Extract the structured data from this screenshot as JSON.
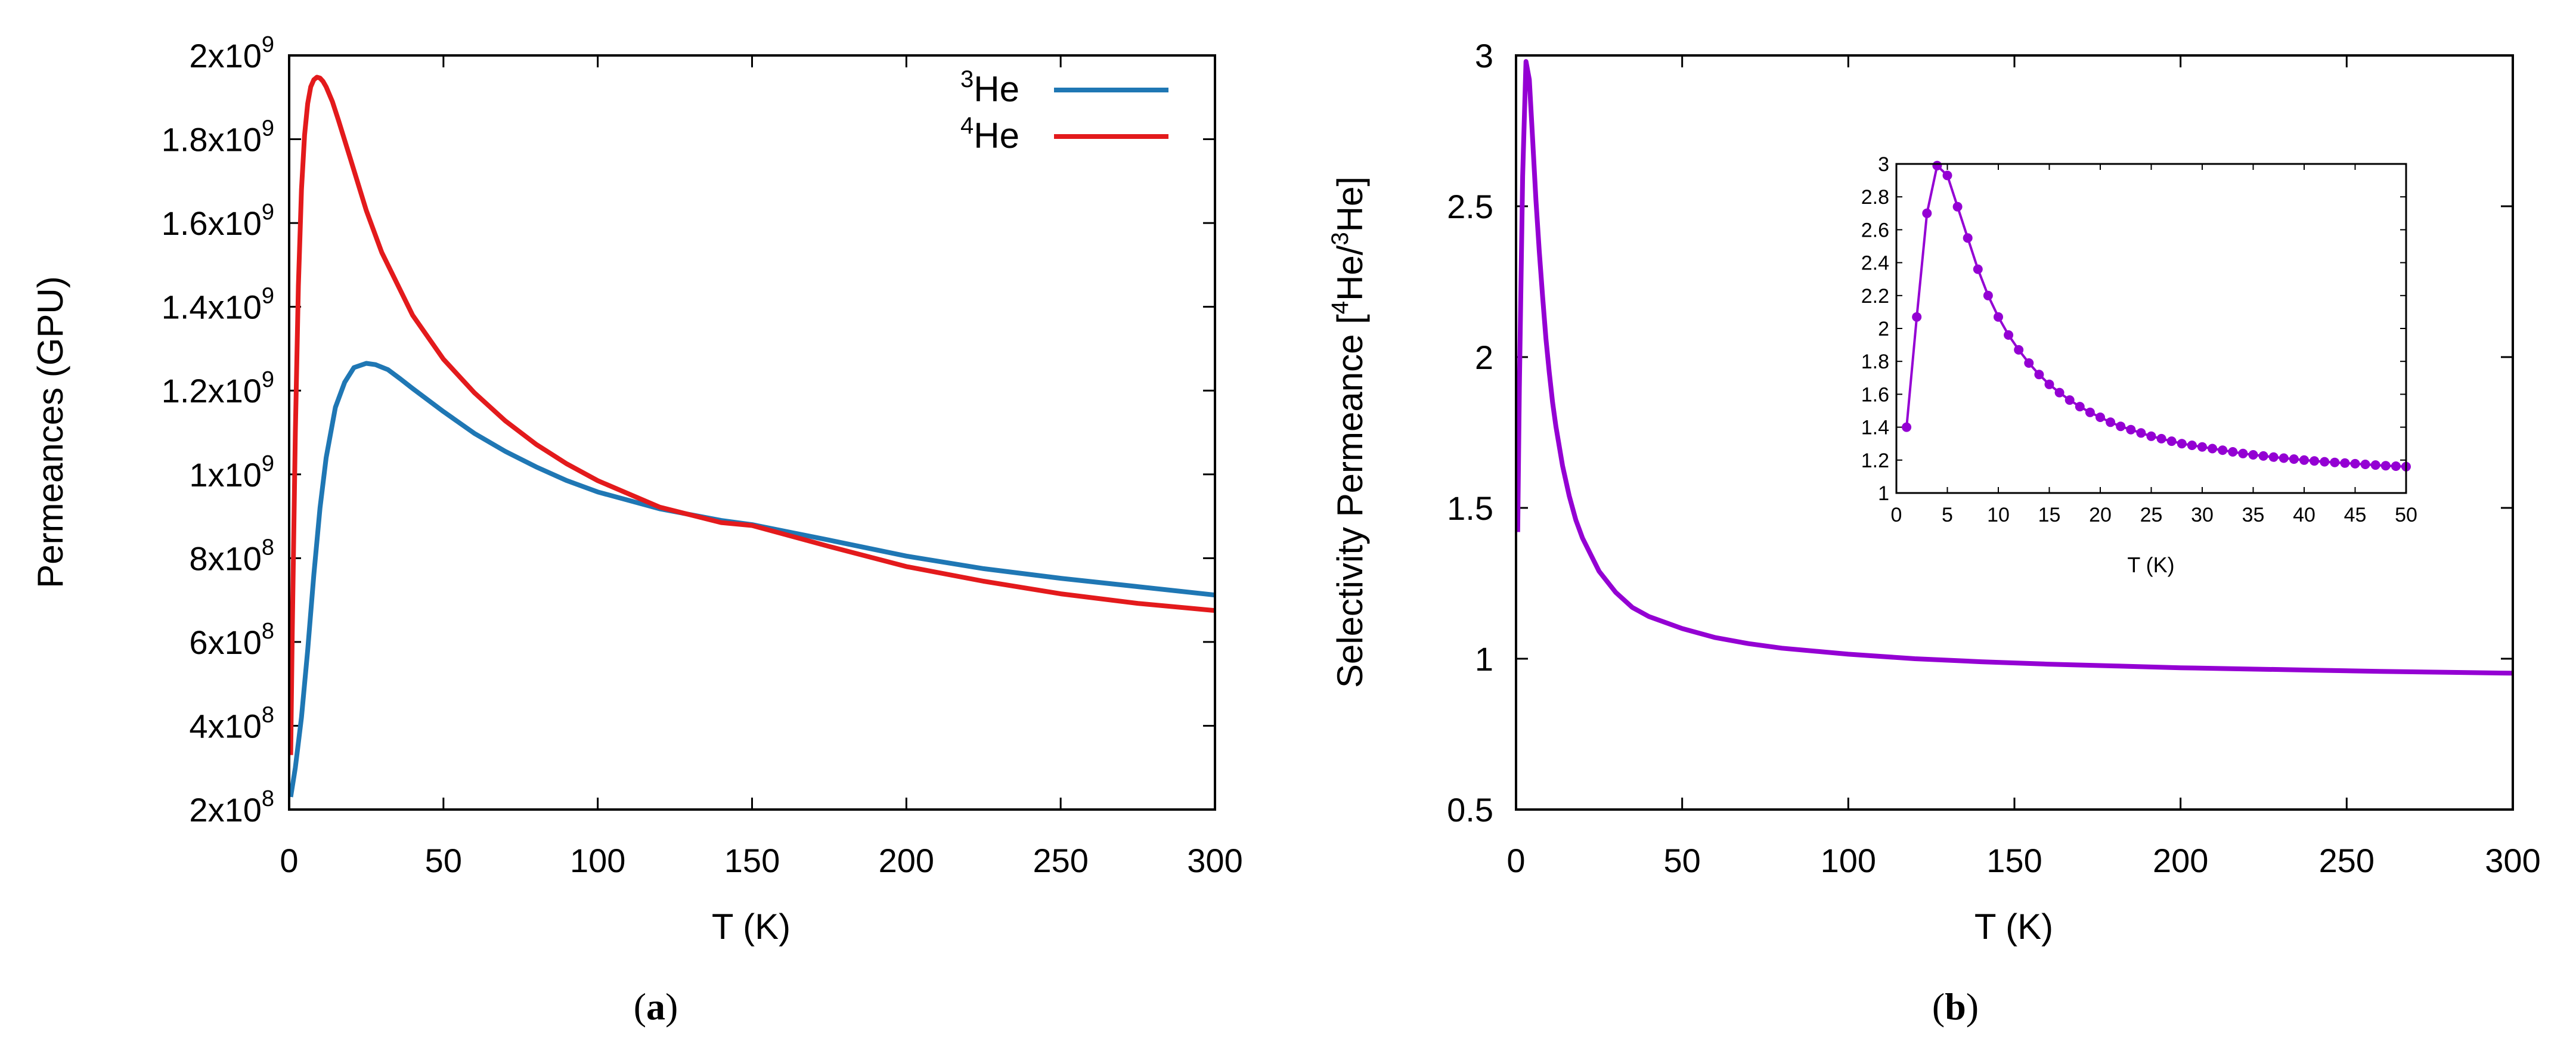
{
  "chart_data": [
    {
      "id": "a",
      "type": "line",
      "caption": {
        "open": "(",
        "letter": "a",
        "close": ")"
      },
      "xlabel": "T (K)",
      "ylabel": "Permeances (GPU)",
      "xlim": [
        0,
        300
      ],
      "ylim": [
        200000000,
        2000000000
      ],
      "x_ticks": [
        0,
        50,
        100,
        150,
        200,
        250,
        300
      ],
      "x_tick_labels": [
        "0",
        "50",
        "100",
        "150",
        "200",
        "250",
        "300"
      ],
      "y_ticks": [
        200000000,
        400000000,
        600000000,
        800000000,
        1000000000,
        1200000000,
        1400000000,
        1600000000,
        1800000000,
        2000000000
      ],
      "y_tick_labels": [
        {
          "base": "2x10",
          "exp": "8"
        },
        {
          "base": "4x10",
          "exp": "8"
        },
        {
          "base": "6x10",
          "exp": "8"
        },
        {
          "base": "8x10",
          "exp": "8"
        },
        {
          "base": "1x10",
          "exp": "9"
        },
        {
          "base": "1.2x10",
          "exp": "9"
        },
        {
          "base": "1.4x10",
          "exp": "9"
        },
        {
          "base": "1.6x10",
          "exp": "9"
        },
        {
          "base": "1.8x10",
          "exp": "9"
        },
        {
          "base": "2x10",
          "exp": "9"
        }
      ],
      "legend_position": "top-right",
      "series": [
        {
          "key": "he3",
          "label": {
            "sup": "3",
            "text": "He"
          },
          "color": "#1f77b4",
          "x": [
            0.5,
            2,
            4,
            6,
            8,
            10,
            12,
            15,
            18,
            21,
            25,
            28,
            32,
            36,
            40,
            50,
            60,
            70,
            80,
            90,
            100,
            120,
            140,
            150,
            175,
            200,
            225,
            250,
            275,
            300
          ],
          "y": [
            230000000,
            300000000,
            420000000,
            580000000,
            760000000,
            920000000,
            1040000000,
            1160000000,
            1220000000,
            1255000000,
            1265000000,
            1262000000,
            1250000000,
            1228000000,
            1205000000,
            1150000000,
            1098000000,
            1055000000,
            1018000000,
            985000000,
            958000000,
            918000000,
            890000000,
            880000000,
            843000000,
            805000000,
            775000000,
            752000000,
            732000000,
            712000000
          ]
        },
        {
          "key": "he4",
          "label": {
            "sup": "4",
            "text": "He"
          },
          "color": "#e31a1c",
          "x": [
            0.5,
            1,
            2,
            3,
            4,
            5,
            6,
            7,
            8,
            9,
            10,
            11,
            12,
            14,
            16,
            20,
            25,
            30,
            40,
            50,
            60,
            70,
            80,
            90,
            100,
            120,
            140,
            150,
            175,
            200,
            225,
            250,
            275,
            300
          ],
          "y": [
            330000000,
            620000000,
            1100000000,
            1450000000,
            1680000000,
            1810000000,
            1885000000,
            1925000000,
            1942000000,
            1948000000,
            1946000000,
            1938000000,
            1925000000,
            1890000000,
            1845000000,
            1750000000,
            1630000000,
            1530000000,
            1380000000,
            1275000000,
            1195000000,
            1128000000,
            1072000000,
            1025000000,
            985000000,
            922000000,
            885000000,
            878000000,
            828000000,
            780000000,
            745000000,
            715000000,
            692000000,
            675000000
          ]
        }
      ]
    },
    {
      "id": "b",
      "type": "line",
      "caption": {
        "open": "(",
        "letter": "b",
        "close": ")"
      },
      "xlabel": "T (K)",
      "ylabel": {
        "pre": "Selectivity Permeance [",
        "sup1": "4",
        "mid": "He/",
        "sup2": "3",
        "post": "He]"
      },
      "xlim": [
        0,
        300
      ],
      "ylim": [
        0.5,
        3
      ],
      "x_ticks": [
        0,
        50,
        100,
        150,
        200,
        250,
        300
      ],
      "x_tick_labels": [
        "0",
        "50",
        "100",
        "150",
        "200",
        "250",
        "300"
      ],
      "y_ticks": [
        0.5,
        1,
        1.5,
        2,
        2.5,
        3
      ],
      "y_tick_labels": [
        "0.5",
        "1",
        "1.5",
        "2",
        "2.5",
        "3"
      ],
      "series": [
        {
          "key": "selectivity",
          "color": "#9400d3",
          "x": [
            0.5,
            1,
            2,
            3,
            4,
            5,
            6,
            7,
            8,
            9,
            10,
            11,
            12,
            14,
            16,
            18,
            20,
            25,
            30,
            35,
            40,
            50,
            60,
            70,
            80,
            100,
            120,
            140,
            160,
            180,
            200,
            220,
            240,
            260,
            280,
            300
          ],
          "y": [
            1.42,
            1.9,
            2.6,
            2.98,
            2.92,
            2.72,
            2.52,
            2.35,
            2.2,
            2.06,
            1.95,
            1.85,
            1.77,
            1.64,
            1.54,
            1.46,
            1.4,
            1.29,
            1.22,
            1.17,
            1.14,
            1.1,
            1.07,
            1.05,
            1.035,
            1.015,
            1.0,
            0.99,
            0.982,
            0.976,
            0.97,
            0.966,
            0.962,
            0.958,
            0.955,
            0.952
          ]
        }
      ],
      "inset": {
        "type": "line+scatter",
        "xlabel": "T (K)",
        "xlim": [
          0,
          50
        ],
        "ylim": [
          1,
          3
        ],
        "x_ticks": [
          0,
          5,
          10,
          15,
          20,
          25,
          30,
          35,
          40,
          45,
          50
        ],
        "x_tick_labels": [
          "0",
          "5",
          "10",
          "15",
          "20",
          "25",
          "30",
          "35",
          "40",
          "45",
          "50"
        ],
        "y_ticks": [
          1,
          1.2,
          1.4,
          1.6,
          1.8,
          2,
          2.2,
          2.4,
          2.6,
          2.8,
          3
        ],
        "y_tick_labels": [
          "1",
          "1.2",
          "1.4",
          "1.6",
          "1.8",
          "2",
          "2.2",
          "2.4",
          "2.6",
          "2.8",
          "3"
        ],
        "series": [
          {
            "key": "selectivity-inset",
            "color": "#9400d3",
            "x": [
              1,
              2,
              3,
              4,
              5,
              6,
              7,
              8,
              9,
              10,
              11,
              12,
              13,
              14,
              15,
              16,
              17,
              18,
              19,
              20,
              21,
              22,
              23,
              24,
              25,
              26,
              27,
              28,
              29,
              30,
              31,
              32,
              33,
              34,
              35,
              36,
              37,
              38,
              39,
              40,
              41,
              42,
              43,
              44,
              45,
              46,
              47,
              48,
              49,
              50
            ],
            "y": [
              1.4,
              2.07,
              2.7,
              2.99,
              2.93,
              2.74,
              2.55,
              2.36,
              2.2,
              2.07,
              1.96,
              1.87,
              1.79,
              1.72,
              1.66,
              1.61,
              1.565,
              1.525,
              1.49,
              1.46,
              1.43,
              1.405,
              1.385,
              1.365,
              1.345,
              1.33,
              1.315,
              1.3,
              1.29,
              1.28,
              1.27,
              1.26,
              1.25,
              1.24,
              1.232,
              1.225,
              1.218,
              1.212,
              1.206,
              1.2,
              1.195,
              1.19,
              1.186,
              1.182,
              1.178,
              1.174,
              1.17,
              1.166,
              1.163,
              1.16
            ]
          }
        ]
      }
    }
  ]
}
